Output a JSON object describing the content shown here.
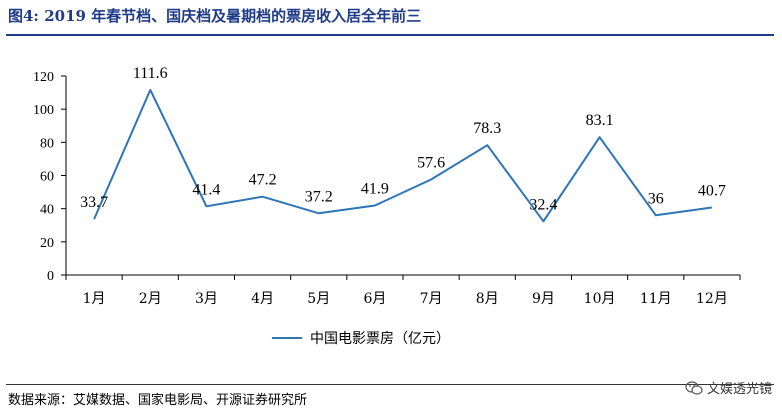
{
  "title": "图4:  2019 年春节档、国庆档及暑期档的票房收入居全年前三",
  "source": "数据来源：艾媒数据、国家电影局、开源证券研究所",
  "watermark": "文娱透光镜",
  "colors": {
    "line": "#2e75b6",
    "title": "#1f3c88"
  },
  "chart_data": {
    "type": "line",
    "categories": [
      "1月",
      "2月",
      "3月",
      "4月",
      "5月",
      "6月",
      "7月",
      "8月",
      "9月",
      "10月",
      "11月",
      "12月"
    ],
    "series": [
      {
        "name": "中国电影票房（亿元）",
        "values": [
          33.7,
          111.6,
          41.4,
          47.2,
          37.2,
          41.9,
          57.6,
          78.3,
          32.4,
          83.1,
          36,
          40.7
        ]
      }
    ],
    "data_labels": [
      "33.7",
      "111.6",
      "41.4",
      "47.2",
      "37.2",
      "41.9",
      "57.6",
      "78.3",
      "32.4",
      "83.1",
      "36",
      "40.7"
    ],
    "yticks": [
      0,
      20,
      40,
      60,
      80,
      100,
      120
    ],
    "ylim": [
      0,
      120
    ],
    "xlabel": "",
    "ylabel": "",
    "grid": false,
    "legend_position": "bottom-center"
  }
}
